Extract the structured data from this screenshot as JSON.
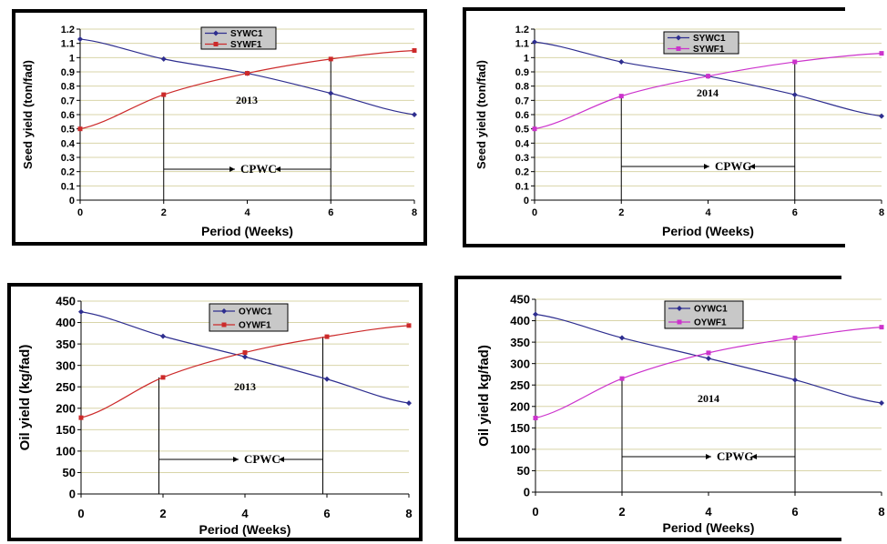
{
  "chart_data": [
    {
      "type": "line",
      "x": [
        0,
        2,
        4,
        6,
        8
      ],
      "xticks": [
        "0",
        "2",
        "4",
        "6",
        "8"
      ],
      "xlabel": "Period (Weeks)",
      "ylabel": "Seed yield (ton/fad)",
      "ylim": [
        0,
        1.2
      ],
      "yticks": [
        "0",
        "0.1",
        "0.2",
        "0.3",
        "0.4",
        "0.5",
        "0.6",
        "0.7",
        "0.8",
        "0.9",
        "1",
        "1.1",
        "1.2"
      ],
      "grid": true,
      "legend_position": "top-center",
      "series": [
        {
          "name": "SYWC1",
          "values": [
            1.13,
            0.99,
            0.89,
            0.75,
            0.6
          ],
          "color": "#2e2e8f",
          "marker": "diamond"
        },
        {
          "name": "SYWF1",
          "values": [
            0.5,
            0.74,
            0.89,
            0.99,
            1.05
          ],
          "color": "#cc2a2a",
          "marker": "square"
        }
      ],
      "annotations": {
        "year": "2013",
        "period": "CPWC"
      }
    },
    {
      "type": "line",
      "x": [
        0,
        2,
        4,
        6,
        8
      ],
      "xticks": [
        "0",
        "2",
        "4",
        "6",
        "8"
      ],
      "xlabel": "Period (Weeks)",
      "ylabel": "Seed yield (ton/fad)",
      "ylim": [
        0,
        1.2
      ],
      "yticks": [
        "0",
        "0.1",
        "0.2",
        "0.3",
        "0.4",
        "0.5",
        "0.6",
        "0.7",
        "0.8",
        "0.9",
        "1",
        "1.1",
        "1.2"
      ],
      "grid": true,
      "legend_position": "top-center",
      "series": [
        {
          "name": "SYWC1",
          "values": [
            1.11,
            0.97,
            0.87,
            0.74,
            0.59
          ],
          "color": "#2e2e8f",
          "marker": "diamond"
        },
        {
          "name": "SYWF1",
          "values": [
            0.5,
            0.73,
            0.87,
            0.97,
            1.03
          ],
          "color": "#cc33cc",
          "marker": "square"
        }
      ],
      "annotations": {
        "year": "2014",
        "period": "CPWG"
      }
    },
    {
      "type": "line",
      "x": [
        0,
        2,
        4,
        6,
        8
      ],
      "xticks": [
        "0",
        "2",
        "4",
        "6",
        "8"
      ],
      "xlabel": "Period (Weeks)",
      "ylabel": "Oil yield (kg/fad)",
      "ylim": [
        0,
        450
      ],
      "yticks": [
        "0",
        "50",
        "100",
        "150",
        "200",
        "250",
        "300",
        "350",
        "400",
        "450"
      ],
      "grid": true,
      "legend_position": "top-center",
      "series": [
        {
          "name": "OYWC1",
          "values": [
            425,
            368,
            320,
            268,
            212
          ],
          "color": "#2e2e8f",
          "marker": "diamond"
        },
        {
          "name": "OYWF1",
          "values": [
            178,
            272,
            330,
            367,
            393
          ],
          "color": "#cc2a2a",
          "marker": "square"
        }
      ],
      "annotations": {
        "year": "2013",
        "period": "CPWC"
      }
    },
    {
      "type": "line",
      "x": [
        0,
        2,
        4,
        6,
        8
      ],
      "xticks": [
        "0",
        "2",
        "4",
        "6",
        "8"
      ],
      "xlabel": "Period (Weeks)",
      "ylabel": "Oil yield kg/fad)",
      "ylim": [
        0,
        450
      ],
      "yticks": [
        "0",
        "50",
        "100",
        "150",
        "200",
        "250",
        "300",
        "350",
        "400",
        "450"
      ],
      "grid": true,
      "legend_position": "top-center",
      "series": [
        {
          "name": "OYWC1",
          "values": [
            415,
            360,
            312,
            262,
            208
          ],
          "color": "#2e2e8f",
          "marker": "diamond"
        },
        {
          "name": "OYWF1",
          "values": [
            173,
            265,
            325,
            360,
            385
          ],
          "color": "#cc33cc",
          "marker": "square"
        }
      ],
      "annotations": {
        "year": "2014",
        "period": "CPWG"
      }
    }
  ]
}
